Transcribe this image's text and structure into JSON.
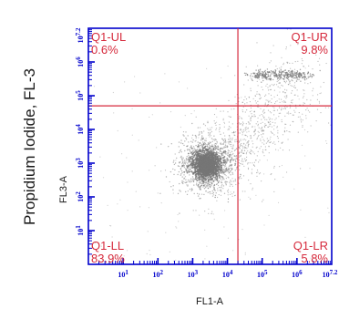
{
  "chart_data": {
    "type": "scatter",
    "title": "",
    "outer_ylabel": "Propidium Iodide, FL-3",
    "xlabel": "FL1-A",
    "ylabel": "FL3-A",
    "x_scale": "log",
    "y_scale": "log",
    "xlim": [
      1,
      10000000
    ],
    "ylim": [
      1,
      10000000
    ],
    "x_ticks": [
      "10^1",
      "10^2",
      "10^3",
      "10^4",
      "10^5",
      "10^6",
      "10^7.2"
    ],
    "y_ticks": [
      "10^1",
      "10^2",
      "10^3",
      "10^4",
      "10^5",
      "10^6",
      "10^7.2"
    ],
    "gates": {
      "x": 20000,
      "y": 50000
    },
    "quadrants": [
      {
        "name": "Q1-UL",
        "percent": "0.6%"
      },
      {
        "name": "Q1-UR",
        "percent": "9.8%"
      },
      {
        "name": "Q1-LL",
        "percent": "83.9%"
      },
      {
        "name": "Q1-LR",
        "percent": "5.8%"
      }
    ],
    "populations": [
      {
        "label": "main-cluster",
        "x_center": 2500,
        "y_center": 900,
        "count": 2600
      },
      {
        "label": "upper-streak",
        "x_center": 250000,
        "y_center": 400000,
        "count": 350
      },
      {
        "label": "scatter-tail",
        "x_center": 100000,
        "y_center": 8000,
        "count": 900
      }
    ],
    "colors": {
      "frame": "#0000cc",
      "gate": "#d62a3c",
      "dots": "#777777"
    }
  }
}
